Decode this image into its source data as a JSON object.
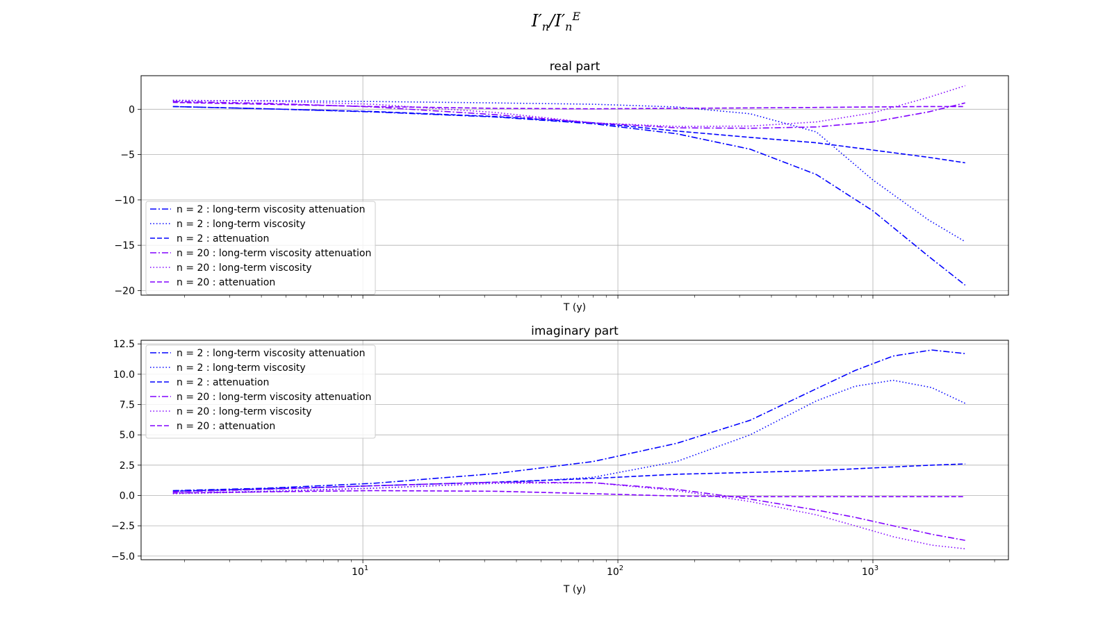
{
  "figure_title": {
    "main": "I",
    "sub1": "n",
    "mid": "/I",
    "sub2": "n",
    "sup": "E"
  },
  "colors": {
    "n2": "#0000ff",
    "n20": "#8000ff",
    "grid": "#b0b0b0"
  },
  "chart_data": [
    {
      "type": "line",
      "title": "real part",
      "xlabel": "T (y)",
      "ylabel": "",
      "x_scale": "log",
      "xlim": [
        1.35,
        3400
      ],
      "ylim": [
        -20.5,
        3.7
      ],
      "yticks": [
        0,
        -5,
        -10,
        -15,
        -20
      ],
      "ytick_labels": [
        "0",
        "−5",
        "−10",
        "−15",
        "−20"
      ],
      "xticks": [
        10,
        100,
        1000
      ],
      "xtick_labels": [
        "",
        "",
        ""
      ],
      "grid": true,
      "legend": "lower left",
      "x": [
        1.8,
        4.2,
        11,
        33,
        80,
        170,
        330,
        600,
        1000,
        1650,
        2300
      ],
      "series": [
        {
          "name": "n = 2 : long-term viscosity attenuation",
          "color_key": "n2",
          "style": "dashdot",
          "values": [
            0.3,
            0.05,
            -0.3,
            -0.85,
            -1.6,
            -2.7,
            -4.4,
            -7.2,
            -11.2,
            -16.2,
            -19.4
          ]
        },
        {
          "name": "n = 2 : long-term viscosity",
          "color_key": "n2",
          "style": "dotted",
          "values": [
            0.95,
            0.95,
            0.85,
            0.7,
            0.55,
            0.25,
            -0.5,
            -2.5,
            -7.8,
            -12.2,
            -14.6
          ]
        },
        {
          "name": "n = 2 :  attenuation",
          "color_key": "n2",
          "style": "dashed",
          "values": [
            0.3,
            0.05,
            -0.25,
            -0.8,
            -1.5,
            -2.4,
            -3.1,
            -3.7,
            -4.5,
            -5.3,
            -5.9
          ]
        },
        {
          "name": "n = 20 : long-term viscosity attenuation",
          "color_key": "n20",
          "style": "dashdot",
          "values": [
            0.85,
            0.65,
            0.25,
            -0.6,
            -1.5,
            -2.05,
            -2.1,
            -1.95,
            -1.4,
            -0.3,
            0.7
          ]
        },
        {
          "name": "n = 20 : long-term viscosity",
          "color_key": "n20",
          "style": "dotted",
          "values": [
            1.0,
            0.9,
            0.55,
            -0.35,
            -1.5,
            -1.9,
            -1.85,
            -1.4,
            -0.4,
            1.3,
            2.6
          ]
        },
        {
          "name": "n = 20 :  attenuation",
          "color_key": "n20",
          "style": "dashed",
          "values": [
            0.75,
            0.55,
            0.3,
            0.1,
            0.05,
            0.1,
            0.15,
            0.2,
            0.25,
            0.3,
            0.3
          ]
        }
      ]
    },
    {
      "type": "line",
      "title": "imaginary part",
      "xlabel": "T (y)",
      "ylabel": "",
      "x_scale": "log",
      "xlim": [
        1.35,
        3400
      ],
      "ylim": [
        -5.3,
        12.8
      ],
      "yticks": [
        12.5,
        10.0,
        7.5,
        5.0,
        2.5,
        0.0,
        -2.5,
        -5.0
      ],
      "ytick_labels": [
        "12.5",
        "10.0",
        "7.5",
        "5.0",
        "2.5",
        "0.0",
        "−2.5",
        "−5.0"
      ],
      "xticks": [
        10,
        100,
        1000
      ],
      "xtick_labels": [
        "10",
        "10",
        "10"
      ],
      "xtick_exponents": [
        "1",
        "2",
        "3"
      ],
      "grid": true,
      "legend": "upper left",
      "x": [
        1.8,
        4.2,
        11,
        33,
        80,
        170,
        330,
        600,
        850,
        1200,
        1700,
        2300
      ],
      "series": [
        {
          "name": "n = 2 : long-term viscosity attenuation",
          "color_key": "n2",
          "style": "dashdot",
          "values": [
            0.4,
            0.6,
            1.0,
            1.8,
            2.8,
            4.3,
            6.2,
            8.8,
            10.3,
            11.5,
            12.0,
            11.7
          ]
        },
        {
          "name": "n = 2 : long-term viscosity",
          "color_key": "n2",
          "style": "dotted",
          "values": [
            0.2,
            0.35,
            0.6,
            1.0,
            1.5,
            2.8,
            5.0,
            7.8,
            9.0,
            9.5,
            8.9,
            7.6
          ]
        },
        {
          "name": "n = 2 :  attenuation",
          "color_key": "n2",
          "style": "dashed",
          "values": [
            0.35,
            0.55,
            0.8,
            1.1,
            1.4,
            1.75,
            1.9,
            2.05,
            2.2,
            2.35,
            2.5,
            2.6
          ]
        },
        {
          "name": "n = 20 : long-term viscosity attenuation",
          "color_key": "n20",
          "style": "dashdot",
          "values": [
            0.3,
            0.5,
            0.8,
            1.1,
            1.05,
            0.5,
            -0.3,
            -1.2,
            -1.8,
            -2.5,
            -3.2,
            -3.7
          ]
        },
        {
          "name": "n = 20 : long-term viscosity",
          "color_key": "n20",
          "style": "dotted",
          "values": [
            0.15,
            0.3,
            0.6,
            1.0,
            1.05,
            0.4,
            -0.5,
            -1.6,
            -2.5,
            -3.4,
            -4.1,
            -4.4
          ]
        },
        {
          "name": "n = 20 :  attenuation",
          "color_key": "n20",
          "style": "dashed",
          "values": [
            0.2,
            0.3,
            0.4,
            0.35,
            0.15,
            -0.05,
            -0.1,
            -0.1,
            -0.1,
            -0.1,
            -0.1,
            -0.1
          ]
        }
      ]
    }
  ]
}
